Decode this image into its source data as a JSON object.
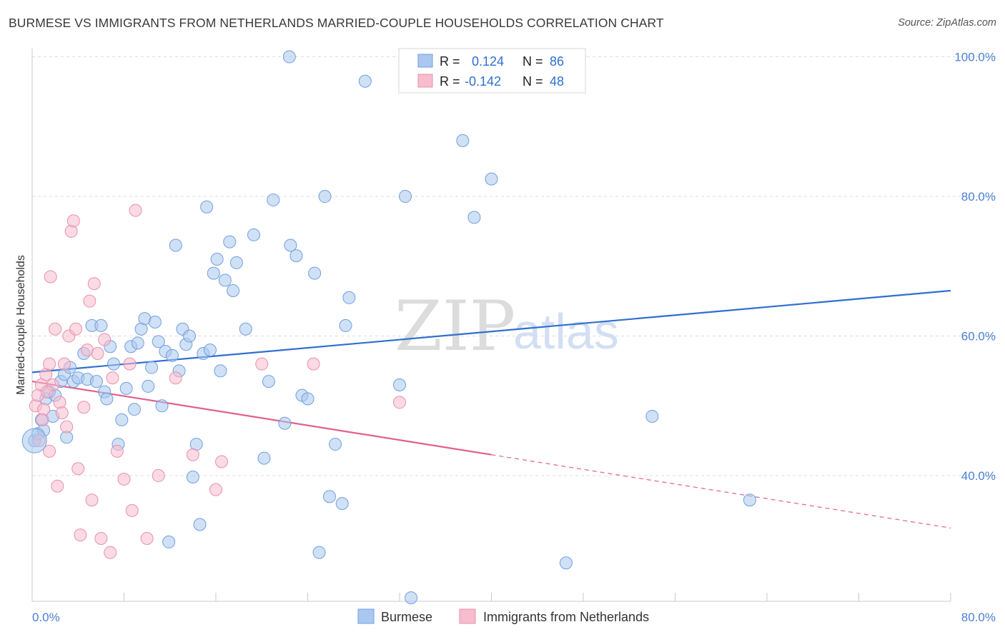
{
  "title": "BURMESE VS IMMIGRANTS FROM NETHERLANDS MARRIED-COUPLE HOUSEHOLDS CORRELATION CHART",
  "source": "Source: ZipAtlas.com",
  "watermark": {
    "zip": "ZIP",
    "atlas": "atlas"
  },
  "colors": {
    "blue_fill": "#aac8ef",
    "blue_stroke": "#6f9fe0",
    "blue_line": "#2f6fd0",
    "pink_fill": "#f7bccd",
    "pink_stroke": "#e890ab",
    "pink_line": "#e0608c",
    "tick_text": "#4a7fd4",
    "grid": "#dcdcdc"
  },
  "stats_box": {
    "rows": [
      {
        "r_label": "R =",
        "r_value": "0.124",
        "n_label": "N =",
        "n_value": "86",
        "color": "blue"
      },
      {
        "r_label": "R =",
        "r_value": "-0.142",
        "n_label": "N =",
        "n_value": "48",
        "color": "pink"
      }
    ]
  },
  "legend": [
    {
      "label": "Burmese",
      "color": "blue"
    },
    {
      "label": "Immigrants from Netherlands",
      "color": "pink"
    }
  ],
  "chart_data": {
    "type": "scatter",
    "title": "BURMESE VS IMMIGRANTS FROM NETHERLANDS MARRIED-COUPLE HOUSEHOLDS CORRELATION CHART",
    "xlabel": "",
    "ylabel": "Married-couple Households",
    "xlim": [
      0,
      80
    ],
    "ylim": [
      22,
      102
    ],
    "x_tick_labels": [
      "0.0%",
      "80.0%"
    ],
    "y_ticks": [
      40,
      60,
      80,
      100
    ],
    "y_tick_labels": [
      "40.0%",
      "60.0%",
      "80.0%",
      "100.0%"
    ],
    "grid": true,
    "legend_position": "bottom-center",
    "series": [
      {
        "name": "Burmese",
        "color": "blue",
        "trend": {
          "x": [
            0,
            80
          ],
          "y": [
            54.8,
            66.5
          ],
          "dashed_from": null
        },
        "points": [
          [
            0.2,
            45.0
          ],
          [
            0.5,
            46.0
          ],
          [
            0.8,
            48.0
          ],
          [
            1.0,
            46.5
          ],
          [
            1.2,
            51.0
          ],
          [
            1.5,
            52.0
          ],
          [
            1.8,
            48.5
          ],
          [
            2.0,
            51.5
          ],
          [
            2.5,
            53.5
          ],
          [
            2.8,
            54.5
          ],
          [
            3.0,
            45.5
          ],
          [
            3.3,
            55.5
          ],
          [
            3.6,
            53.5
          ],
          [
            4.0,
            54.0
          ],
          [
            4.5,
            57.5
          ],
          [
            4.8,
            53.8
          ],
          [
            5.2,
            61.5
          ],
          [
            5.6,
            53.5
          ],
          [
            6.0,
            61.5
          ],
          [
            6.3,
            52.0
          ],
          [
            6.5,
            51.0
          ],
          [
            6.8,
            58.5
          ],
          [
            7.1,
            56.0
          ],
          [
            7.5,
            44.5
          ],
          [
            7.8,
            48.0
          ],
          [
            8.2,
            52.5
          ],
          [
            8.6,
            58.5
          ],
          [
            8.9,
            49.5
          ],
          [
            9.2,
            59.0
          ],
          [
            9.5,
            61.0
          ],
          [
            9.8,
            62.5
          ],
          [
            10.1,
            52.8
          ],
          [
            10.4,
            55.5
          ],
          [
            10.7,
            62.0
          ],
          [
            11.0,
            59.2
          ],
          [
            11.3,
            50.0
          ],
          [
            11.6,
            57.8
          ],
          [
            11.9,
            30.5
          ],
          [
            12.2,
            57.2
          ],
          [
            12.5,
            73.0
          ],
          [
            12.8,
            55.0
          ],
          [
            13.1,
            61.0
          ],
          [
            13.4,
            58.8
          ],
          [
            13.7,
            60.0
          ],
          [
            14.0,
            39.8
          ],
          [
            14.3,
            44.5
          ],
          [
            14.6,
            33.0
          ],
          [
            14.9,
            57.5
          ],
          [
            15.2,
            78.5
          ],
          [
            15.5,
            58.0
          ],
          [
            15.8,
            69.0
          ],
          [
            16.1,
            71.0
          ],
          [
            16.4,
            55.0
          ],
          [
            16.8,
            68.0
          ],
          [
            17.2,
            73.5
          ],
          [
            17.5,
            66.5
          ],
          [
            17.8,
            70.5
          ],
          [
            18.6,
            61.0
          ],
          [
            19.3,
            74.5
          ],
          [
            20.2,
            42.5
          ],
          [
            20.6,
            53.5
          ],
          [
            21.0,
            79.5
          ],
          [
            22.0,
            47.5
          ],
          [
            22.5,
            73.0
          ],
          [
            23.0,
            71.5
          ],
          [
            23.5,
            51.5
          ],
          [
            24.0,
            51.0
          ],
          [
            24.6,
            69.0
          ],
          [
            25.0,
            29.0
          ],
          [
            25.5,
            80.0
          ],
          [
            25.9,
            37.0
          ],
          [
            26.4,
            44.5
          ],
          [
            27.0,
            36.0
          ],
          [
            27.3,
            61.5
          ],
          [
            27.6,
            65.5
          ],
          [
            22.4,
            100.0
          ],
          [
            29.0,
            96.5
          ],
          [
            32.0,
            53.0
          ],
          [
            32.5,
            80.0
          ],
          [
            33.0,
            22.5
          ],
          [
            37.5,
            88.0
          ],
          [
            38.5,
            77.0
          ],
          [
            40.0,
            82.5
          ],
          [
            46.5,
            27.5
          ],
          [
            54.0,
            48.5
          ],
          [
            62.5,
            36.5
          ]
        ]
      },
      {
        "name": "Immigrants from Netherlands",
        "color": "pink",
        "trend": {
          "x": [
            0,
            80
          ],
          "y": [
            53.5,
            32.5
          ],
          "dashed_from": 40
        },
        "points": [
          [
            0.3,
            50.0
          ],
          [
            0.5,
            51.5
          ],
          [
            0.8,
            53.0
          ],
          [
            1.0,
            49.5
          ],
          [
            1.2,
            54.5
          ],
          [
            1.5,
            56.0
          ],
          [
            1.5,
            43.5
          ],
          [
            1.6,
            68.5
          ],
          [
            1.8,
            53.0
          ],
          [
            2.0,
            61.0
          ],
          [
            2.2,
            38.5
          ],
          [
            2.4,
            50.5
          ],
          [
            2.6,
            49.0
          ],
          [
            2.8,
            56.0
          ],
          [
            3.0,
            47.0
          ],
          [
            3.2,
            60.0
          ],
          [
            3.4,
            75.0
          ],
          [
            3.6,
            76.5
          ],
          [
            3.8,
            61.0
          ],
          [
            4.0,
            41.0
          ],
          [
            4.2,
            31.5
          ],
          [
            4.5,
            49.8
          ],
          [
            4.8,
            58.0
          ],
          [
            5.0,
            65.0
          ],
          [
            5.2,
            36.5
          ],
          [
            5.4,
            67.5
          ],
          [
            5.7,
            57.5
          ],
          [
            6.0,
            31.0
          ],
          [
            6.3,
            59.5
          ],
          [
            6.8,
            29.0
          ],
          [
            7.0,
            54.0
          ],
          [
            7.4,
            43.5
          ],
          [
            8.0,
            39.5
          ],
          [
            8.5,
            56.0
          ],
          [
            8.7,
            35.0
          ],
          [
            9.0,
            78.0
          ],
          [
            10.0,
            31.0
          ],
          [
            11.0,
            40.0
          ],
          [
            12.5,
            54.0
          ],
          [
            14.0,
            43.0
          ],
          [
            16.0,
            38.0
          ],
          [
            16.5,
            42.0
          ],
          [
            20.0,
            56.0
          ],
          [
            24.5,
            56.0
          ],
          [
            32.0,
            50.5
          ],
          [
            0.6,
            45.0
          ],
          [
            1.3,
            52.0
          ],
          [
            0.9,
            48.0
          ]
        ]
      }
    ]
  }
}
